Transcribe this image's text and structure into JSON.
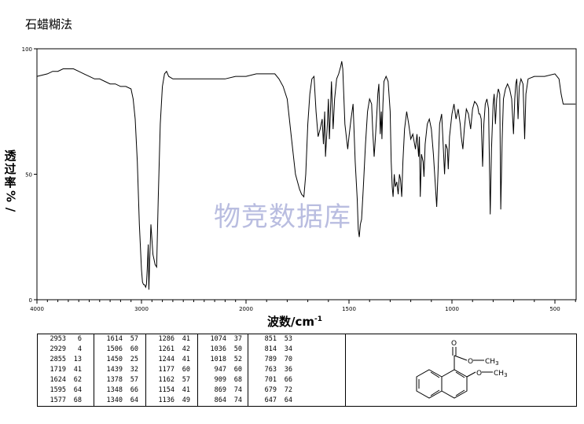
{
  "title": "石蜡糊法",
  "watermark": "物竞数据库",
  "chart_data": {
    "type": "line",
    "xlabel": "波数/cm",
    "xlabel_sup": "-1",
    "ylabel": [
      "透",
      "过",
      "率",
      "%",
      "/"
    ],
    "xlim": [
      4000,
      400
    ],
    "ylim": [
      0,
      100
    ],
    "x_ticks": [
      4000,
      3000,
      2000,
      1500,
      1000,
      500
    ],
    "y_ticks": [
      0,
      50,
      100
    ],
    "grid": false,
    "legend": "none",
    "series": [
      {
        "points": [
          [
            4000,
            89
          ],
          [
            3900,
            90
          ],
          [
            3850,
            91
          ],
          [
            3800,
            91
          ],
          [
            3750,
            92
          ],
          [
            3700,
            92
          ],
          [
            3650,
            92
          ],
          [
            3600,
            91
          ],
          [
            3550,
            90
          ],
          [
            3500,
            89
          ],
          [
            3450,
            88
          ],
          [
            3400,
            88
          ],
          [
            3350,
            87
          ],
          [
            3300,
            86
          ],
          [
            3250,
            86
          ],
          [
            3200,
            85
          ],
          [
            3150,
            85
          ],
          [
            3100,
            84
          ],
          [
            3080,
            80
          ],
          [
            3060,
            72
          ],
          [
            3040,
            55
          ],
          [
            3020,
            30
          ],
          [
            3000,
            12
          ],
          [
            2990,
            7
          ],
          [
            2980,
            6
          ],
          [
            2970,
            6
          ],
          [
            2960,
            5
          ],
          [
            2953,
            6
          ],
          [
            2945,
            12
          ],
          [
            2935,
            22
          ],
          [
            2929,
            4
          ],
          [
            2922,
            15
          ],
          [
            2910,
            30
          ],
          [
            2900,
            24
          ],
          [
            2890,
            18
          ],
          [
            2880,
            16
          ],
          [
            2870,
            14
          ],
          [
            2855,
            13
          ],
          [
            2840,
            40
          ],
          [
            2820,
            70
          ],
          [
            2800,
            85
          ],
          [
            2780,
            90
          ],
          [
            2760,
            91
          ],
          [
            2740,
            89
          ],
          [
            2700,
            88
          ],
          [
            2650,
            88
          ],
          [
            2600,
            88
          ],
          [
            2500,
            88
          ],
          [
            2400,
            88
          ],
          [
            2300,
            88
          ],
          [
            2200,
            88
          ],
          [
            2100,
            89
          ],
          [
            2000,
            89
          ],
          [
            1950,
            90
          ],
          [
            1900,
            90
          ],
          [
            1860,
            90
          ],
          [
            1840,
            88
          ],
          [
            1820,
            85
          ],
          [
            1800,
            80
          ],
          [
            1780,
            65
          ],
          [
            1760,
            50
          ],
          [
            1740,
            44
          ],
          [
            1730,
            42
          ],
          [
            1719,
            41
          ],
          [
            1710,
            50
          ],
          [
            1700,
            70
          ],
          [
            1690,
            82
          ],
          [
            1680,
            88
          ],
          [
            1670,
            89
          ],
          [
            1660,
            75
          ],
          [
            1650,
            65
          ],
          [
            1640,
            68
          ],
          [
            1630,
            72
          ],
          [
            1624,
            62
          ],
          [
            1618,
            75
          ],
          [
            1614,
            57
          ],
          [
            1605,
            70
          ],
          [
            1600,
            80
          ],
          [
            1595,
            64
          ],
          [
            1590,
            75
          ],
          [
            1585,
            87
          ],
          [
            1577,
            68
          ],
          [
            1570,
            80
          ],
          [
            1560,
            88
          ],
          [
            1550,
            90
          ],
          [
            1540,
            93
          ],
          [
            1535,
            95
          ],
          [
            1530,
            92
          ],
          [
            1520,
            70
          ],
          [
            1506,
            60
          ],
          [
            1500,
            65
          ],
          [
            1490,
            72
          ],
          [
            1480,
            78
          ],
          [
            1470,
            55
          ],
          [
            1460,
            40
          ],
          [
            1455,
            28
          ],
          [
            1450,
            25
          ],
          [
            1445,
            30
          ],
          [
            1439,
            32
          ],
          [
            1430,
            45
          ],
          [
            1420,
            62
          ],
          [
            1410,
            75
          ],
          [
            1400,
            80
          ],
          [
            1390,
            78
          ],
          [
            1385,
            68
          ],
          [
            1378,
            57
          ],
          [
            1372,
            64
          ],
          [
            1365,
            74
          ],
          [
            1360,
            82
          ],
          [
            1355,
            86
          ],
          [
            1348,
            66
          ],
          [
            1343,
            75
          ],
          [
            1340,
            64
          ],
          [
            1335,
            78
          ],
          [
            1330,
            87
          ],
          [
            1320,
            89
          ],
          [
            1310,
            87
          ],
          [
            1300,
            75
          ],
          [
            1295,
            55
          ],
          [
            1290,
            45
          ],
          [
            1286,
            41
          ],
          [
            1280,
            50
          ],
          [
            1275,
            45
          ],
          [
            1268,
            47
          ],
          [
            1261,
            42
          ],
          [
            1255,
            50
          ],
          [
            1250,
            48
          ],
          [
            1244,
            41
          ],
          [
            1238,
            55
          ],
          [
            1230,
            68
          ],
          [
            1220,
            75
          ],
          [
            1210,
            70
          ],
          [
            1200,
            64
          ],
          [
            1190,
            66
          ],
          [
            1177,
            60
          ],
          [
            1170,
            66
          ],
          [
            1162,
            57
          ],
          [
            1158,
            65
          ],
          [
            1154,
            41
          ],
          [
            1148,
            58
          ],
          [
            1140,
            55
          ],
          [
            1136,
            49
          ],
          [
            1130,
            62
          ],
          [
            1120,
            70
          ],
          [
            1110,
            72
          ],
          [
            1100,
            68
          ],
          [
            1090,
            58
          ],
          [
            1080,
            45
          ],
          [
            1074,
            37
          ],
          [
            1068,
            50
          ],
          [
            1060,
            70
          ],
          [
            1050,
            74
          ],
          [
            1045,
            66
          ],
          [
            1036,
            50
          ],
          [
            1030,
            62
          ],
          [
            1022,
            60
          ],
          [
            1018,
            52
          ],
          [
            1012,
            65
          ],
          [
            1000,
            74
          ],
          [
            990,
            78
          ],
          [
            980,
            72
          ],
          [
            970,
            76
          ],
          [
            960,
            70
          ],
          [
            955,
            65
          ],
          [
            947,
            60
          ],
          [
            940,
            68
          ],
          [
            930,
            76
          ],
          [
            920,
            74
          ],
          [
            909,
            68
          ],
          [
            900,
            76
          ],
          [
            890,
            79
          ],
          [
            880,
            78
          ],
          [
            875,
            77
          ],
          [
            869,
            74
          ],
          [
            864,
            74
          ],
          [
            858,
            72
          ],
          [
            851,
            53
          ],
          [
            845,
            70
          ],
          [
            838,
            78
          ],
          [
            830,
            80
          ],
          [
            822,
            76
          ],
          [
            814,
            34
          ],
          [
            808,
            60
          ],
          [
            800,
            78
          ],
          [
            795,
            82
          ],
          [
            789,
            70
          ],
          [
            783,
            80
          ],
          [
            775,
            84
          ],
          [
            768,
            82
          ],
          [
            763,
            36
          ],
          [
            756,
            64
          ],
          [
            750,
            80
          ],
          [
            740,
            84
          ],
          [
            730,
            86
          ],
          [
            720,
            84
          ],
          [
            710,
            80
          ],
          [
            701,
            66
          ],
          [
            695,
            80
          ],
          [
            690,
            86
          ],
          [
            685,
            88
          ],
          [
            679,
            72
          ],
          [
            673,
            85
          ],
          [
            665,
            88
          ],
          [
            655,
            86
          ],
          [
            647,
            64
          ],
          [
            641,
            82
          ],
          [
            630,
            88
          ],
          [
            600,
            89
          ],
          [
            550,
            89
          ],
          [
            500,
            90
          ],
          [
            480,
            88
          ],
          [
            470,
            82
          ],
          [
            460,
            78
          ],
          [
            440,
            78
          ],
          [
            420,
            78
          ],
          [
            400,
            78
          ]
        ]
      }
    ]
  },
  "peaks": [
    [
      [
        "2953",
        "6"
      ],
      [
        "2929",
        "4"
      ],
      [
        "2855",
        "13"
      ],
      [
        "1719",
        "41"
      ],
      [
        "1624",
        "62"
      ],
      [
        "1595",
        "64"
      ],
      [
        "1577",
        "68"
      ]
    ],
    [
      [
        "1614",
        "57"
      ],
      [
        "1506",
        "60"
      ],
      [
        "1450",
        "25"
      ],
      [
        "1439",
        "32"
      ],
      [
        "1378",
        "57"
      ],
      [
        "1348",
        "66"
      ],
      [
        "1340",
        "64"
      ]
    ],
    [
      [
        "1286",
        "41"
      ],
      [
        "1261",
        "42"
      ],
      [
        "1244",
        "41"
      ],
      [
        "1177",
        "60"
      ],
      [
        "1162",
        "57"
      ],
      [
        "1154",
        "41"
      ],
      [
        "1136",
        "49"
      ]
    ],
    [
      [
        "1074",
        "37"
      ],
      [
        "1036",
        "50"
      ],
      [
        "1018",
        "52"
      ],
      [
        "947",
        "60"
      ],
      [
        "909",
        "68"
      ],
      [
        "869",
        "74"
      ],
      [
        "864",
        "74"
      ]
    ],
    [
      [
        "851",
        "53"
      ],
      [
        "814",
        "34"
      ],
      [
        "789",
        "70"
      ],
      [
        "763",
        "36"
      ],
      [
        "701",
        "66"
      ],
      [
        "679",
        "72"
      ],
      [
        "647",
        "64"
      ]
    ]
  ],
  "structure": {
    "carbonyl_o": "O",
    "ester_o": "O",
    "ester_methyl": "CH",
    "ester_methyl_sub": "3",
    "ether_o": "O",
    "ether_methyl": "CH",
    "ether_methyl_sub": "3"
  }
}
